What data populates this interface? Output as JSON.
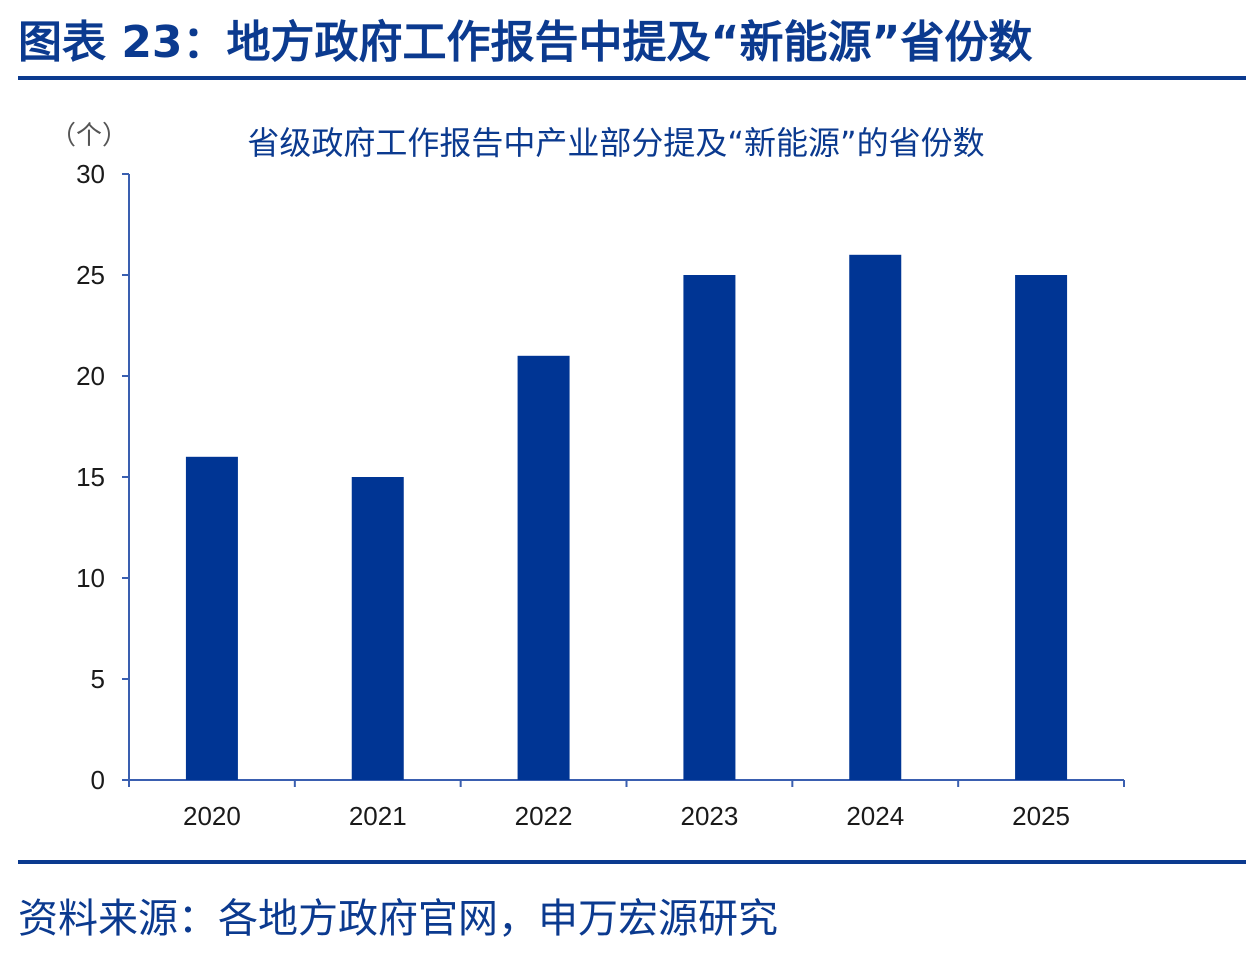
{
  "figure": {
    "title": "图表 23：地方政府工作报告中提及“新能源”省份数",
    "source": "资料来源：各地方政府官网，申万宏源研究"
  },
  "colors": {
    "accent": "#0b3a8f",
    "bar": "#003594",
    "axis": "#3a5fb0",
    "text": "#1a1a1a"
  },
  "chart_data": {
    "type": "bar",
    "title": "省级政府工作报告中产业部分提及“新能源”的省份数",
    "ylabel": "（个）",
    "xlabel": "",
    "categories": [
      "2020",
      "2021",
      "2022",
      "2023",
      "2024",
      "2025"
    ],
    "values": [
      16,
      15,
      21,
      25,
      26,
      25
    ],
    "ylim": [
      0,
      30
    ],
    "yticks": [
      0,
      5,
      10,
      15,
      20,
      25,
      30
    ],
    "grid": false,
    "legend": "none"
  }
}
